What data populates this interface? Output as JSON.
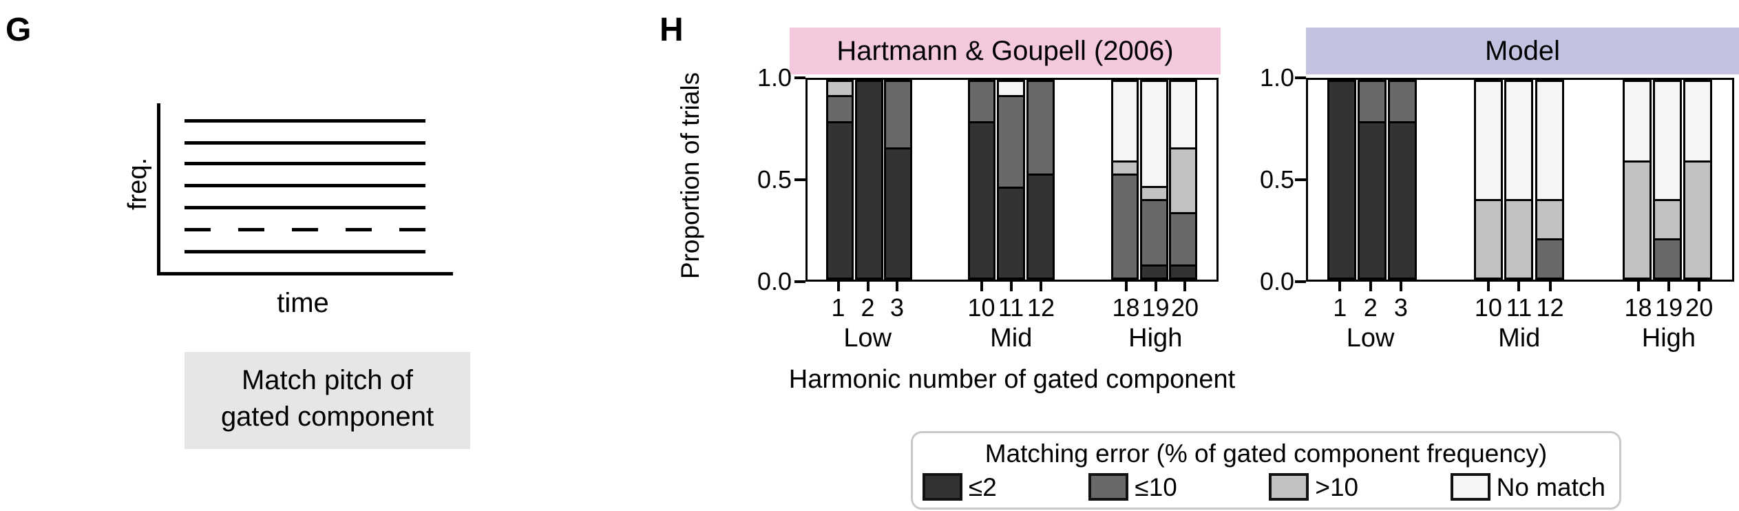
{
  "panel_g": {
    "label": "G",
    "schematic": {
      "ylabel": "freq.",
      "xlabel": "time",
      "n_lines": 7,
      "dashed_line_index": 5,
      "description": "harmonic-spectrum-with-gated-component"
    },
    "instruction_line1": "Match pitch of",
    "instruction_line2": "gated component"
  },
  "panel_h": {
    "label": "H"
  },
  "legend": {
    "title": "Matching error (% of gated component frequency)",
    "entries": [
      {
        "label": "≤2",
        "color": "#333333"
      },
      {
        "label": "≤10",
        "color": "#696969"
      },
      {
        "label": ">10",
        "color": "#c2c2c2"
      },
      {
        "label": "No match",
        "color": "#f5f5f3"
      }
    ]
  },
  "chart_data": [
    {
      "type": "bar",
      "stacked": true,
      "title": "Hartmann & Goupell (2006)",
      "header_color": "#f4c9de",
      "ylabel": "Proportion of trials",
      "xlabel": "Harmonic number of gated component",
      "ylim": [
        0.0,
        1.0
      ],
      "yticks": [
        "1.0",
        "0.5",
        "0.0"
      ],
      "grid": false,
      "categories": [
        "1",
        "2",
        "3",
        "10",
        "11",
        "12",
        "18",
        "19",
        "20"
      ],
      "groups": [
        {
          "label": "Low",
          "categories": [
            "1",
            "2",
            "3"
          ]
        },
        {
          "label": "Mid",
          "categories": [
            "10",
            "11",
            "12"
          ]
        },
        {
          "label": "High",
          "categories": [
            "18",
            "19",
            "20"
          ]
        }
      ],
      "series": [
        {
          "name": "≤2",
          "color": "#333333",
          "values": [
            0.8,
            1.0,
            0.667,
            0.8,
            0.467,
            0.533,
            0,
            0.067,
            0.067
          ]
        },
        {
          "name": "≤10",
          "color": "#696969",
          "values": [
            0.133,
            0,
            0.333,
            0.2,
            0.467,
            0.467,
            0.533,
            0.333,
            0.267
          ]
        },
        {
          "name": ">10",
          "color": "#c2c2c2",
          "values": [
            0.067,
            0,
            0,
            0,
            0,
            0,
            0.067,
            0.067,
            0.333
          ]
        },
        {
          "name": "No match",
          "color": "#f5f5f3",
          "values": [
            0,
            0,
            0,
            0,
            0.067,
            0,
            0.4,
            0.533,
            0.333
          ]
        }
      ]
    },
    {
      "type": "bar",
      "stacked": true,
      "title": "Model",
      "header_color": "#c3c3e1",
      "ylim": [
        0.0,
        1.0
      ],
      "yticks": [
        "1.0",
        "0.5",
        "0.0"
      ],
      "grid": false,
      "categories": [
        "1",
        "2",
        "3",
        "10",
        "11",
        "12",
        "18",
        "19",
        "20"
      ],
      "groups": [
        {
          "label": "Low",
          "categories": [
            "1",
            "2",
            "3"
          ]
        },
        {
          "label": "Mid",
          "categories": [
            "10",
            "11",
            "12"
          ]
        },
        {
          "label": "High",
          "categories": [
            "18",
            "19",
            "20"
          ]
        }
      ],
      "series": [
        {
          "name": "≤2",
          "color": "#333333",
          "values": [
            1.0,
            0.8,
            0.8,
            0,
            0,
            0,
            0,
            0,
            0
          ]
        },
        {
          "name": "≤10",
          "color": "#696969",
          "values": [
            0,
            0.2,
            0.2,
            0,
            0,
            0.2,
            0,
            0.2,
            0
          ]
        },
        {
          "name": ">10",
          "color": "#c2c2c2",
          "values": [
            0,
            0,
            0,
            0.4,
            0.4,
            0.2,
            0.6,
            0.2,
            0.6
          ]
        },
        {
          "name": "No match",
          "color": "#f5f5f3",
          "values": [
            0,
            0,
            0,
            0.6,
            0.6,
            0.6,
            0.4,
            0.6,
            0.4
          ]
        }
      ]
    }
  ]
}
